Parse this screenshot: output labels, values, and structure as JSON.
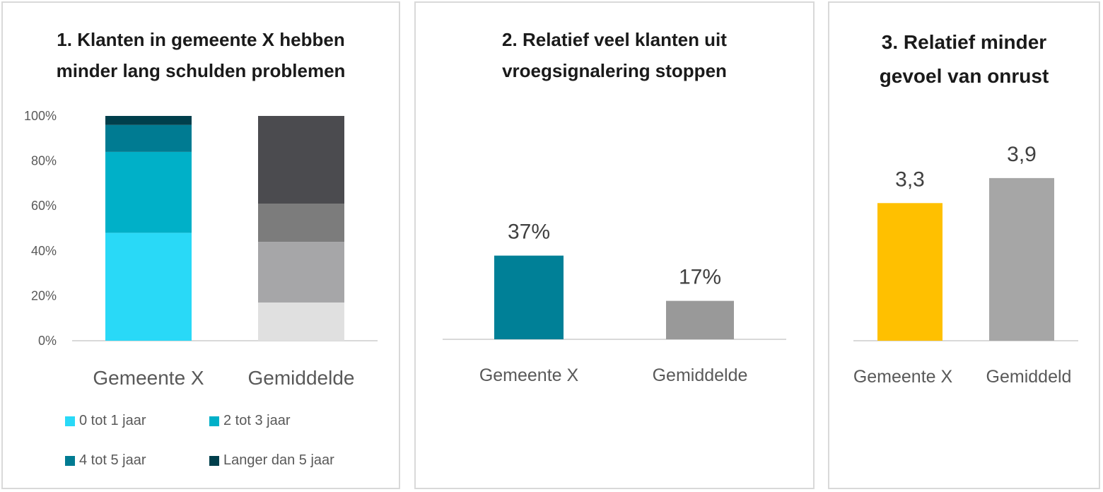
{
  "colors": {
    "gemeente_0_1": "#29d9f7",
    "gemeente_2_3": "#00b0c8",
    "gemeente_4_5": "#007b92",
    "gemeente_5plus": "#003f4c",
    "gemiddelde_0_1": "#e0e0e0",
    "gemiddelde_2_3": "#a6a6a8",
    "gemiddelde_4_5": "#7c7c7c",
    "gemiddelde_5plus": "#4b4b4f",
    "chart2_gemeente": "#008097",
    "chart2_gemiddelde": "#999999",
    "chart3_gemeente": "#ffc000",
    "chart3_gemiddelde": "#a6a6a6",
    "axis": "#d9d9d9"
  },
  "chart_data": [
    {
      "type": "bar",
      "stacked": true,
      "title_line1": "1. Klanten in gemeente X hebben",
      "title_line2": "minder lang schulden problemen",
      "categories": [
        "Gemeente X",
        "Gemiddelde"
      ],
      "ylim": [
        0,
        100
      ],
      "yticks": [
        "0%",
        "20%",
        "40%",
        "60%",
        "80%",
        "100%"
      ],
      "series": [
        {
          "name": "0 tot 1 jaar",
          "values": [
            48,
            17
          ]
        },
        {
          "name": "2 tot 3 jaar",
          "values": [
            36,
            27
          ]
        },
        {
          "name": "4 tot 5 jaar",
          "values": [
            12,
            17
          ]
        },
        {
          "name": "Langer dan 5 jaar",
          "values": [
            4,
            39
          ]
        }
      ],
      "legend": "bottom"
    },
    {
      "type": "bar",
      "title_line1": "2. Relatief veel klanten uit",
      "title_line2": "vroegsignalering stoppen",
      "categories": [
        "Gemeente X",
        "Gemiddelde"
      ],
      "values": [
        37,
        17
      ],
      "labels": [
        "37%",
        "17%"
      ]
    },
    {
      "type": "bar",
      "title_line1": "3. Relatief minder",
      "title_line2": "gevoel van onrust",
      "categories": [
        "Gemeente X",
        "Gemiddeld"
      ],
      "values": [
        3.3,
        3.9
      ],
      "labels": [
        "3,3",
        "3,9"
      ]
    }
  ]
}
